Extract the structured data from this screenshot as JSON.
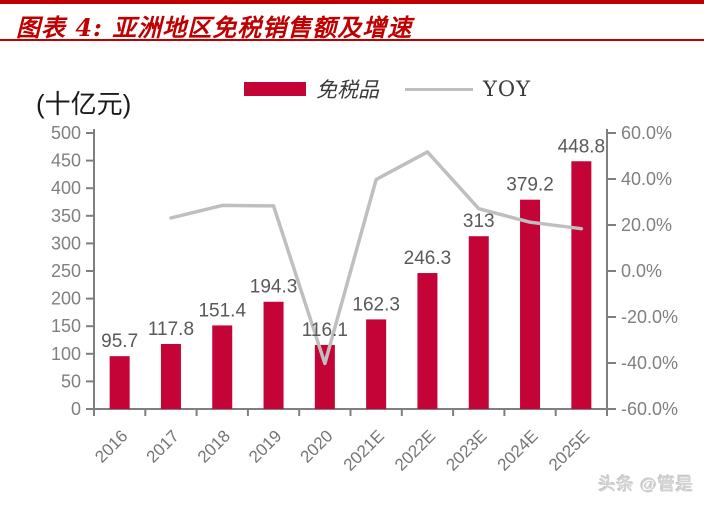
{
  "header": {
    "title": "图表 4:  亚洲地区免税销售额及增速"
  },
  "chart": {
    "unit_label": "(十亿元)",
    "legend": {
      "bar_label": "免税品",
      "line_label": "YOY"
    }
  },
  "chart_data": {
    "type": "bar+line",
    "title": "亚洲地区免税销售额及增速",
    "categories": [
      "2016",
      "2017",
      "2018",
      "2019",
      "2020",
      "2021E",
      "2022E",
      "2023E",
      "2024E",
      "2025E"
    ],
    "series": [
      {
        "name": "免税品",
        "type": "bar",
        "axis": "left",
        "color": "#c40336",
        "values": [
          95.7,
          117.8,
          151.4,
          194.3,
          116.1,
          162.3,
          246.3,
          313,
          379.2,
          448.8
        ],
        "labels": [
          "95.7",
          "117.8",
          "151.4",
          "194.3",
          "116.1",
          "162.3",
          "246.3",
          "313",
          "379.2",
          "448.8"
        ]
      },
      {
        "name": "YOY",
        "type": "line",
        "axis": "right",
        "color": "#bfbfbf",
        "values": [
          null,
          23.1,
          28.5,
          28.3,
          -40.2,
          39.8,
          51.8,
          27.1,
          21.2,
          18.4
        ]
      }
    ],
    "left_axis": {
      "min": 0,
      "max": 500,
      "step": 50,
      "tick_labels": [
        "0",
        "50",
        "100",
        "150",
        "200",
        "250",
        "300",
        "350",
        "400",
        "450",
        "500"
      ]
    },
    "right_axis": {
      "min": -60,
      "max": 60,
      "step": 20,
      "tick_labels": [
        "-60.0%",
        "-40.0%",
        "-20.0%",
        "0.0%",
        "20.0%",
        "40.0%",
        "60.0%"
      ]
    },
    "grid": false,
    "legend_position": "top"
  },
  "watermark": {
    "text": "头条 @管是"
  },
  "colors": {
    "accent_red": "#c00000",
    "bar_red": "#c40336",
    "line_gray": "#bfbfbf",
    "axis_gray": "#7f7f7f",
    "tick_label_gray": "#808080",
    "data_label_gray": "#595959"
  }
}
